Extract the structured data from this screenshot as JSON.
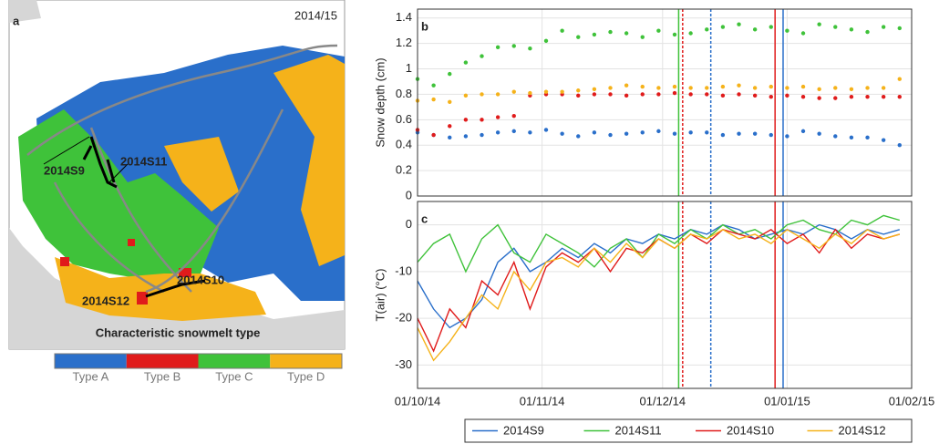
{
  "map": {
    "panel": "a",
    "season": "2014/15",
    "title": "Characteristic snowmelt type",
    "stations": [
      "2014S9",
      "2014S11",
      "2014S10",
      "2014S12"
    ],
    "legend": [
      {
        "label": "Type A",
        "color": "#2a6fca"
      },
      {
        "label": "Type B",
        "color": "#e01b1b"
      },
      {
        "label": "Type C",
        "color": "#3fc23a"
      },
      {
        "label": "Type D",
        "color": "#f5b21a"
      }
    ]
  },
  "chart_data": [
    {
      "type": "scatter",
      "panel": "b",
      "ylabel": "Snow depth (cm)",
      "xlim": [
        "01/10/14",
        "01/02/15"
      ],
      "ylim": [
        0,
        1.47
      ],
      "yticks": [
        0,
        0.2,
        0.4,
        0.6,
        0.8,
        1,
        1.2,
        1.4
      ],
      "grid": true,
      "x": [
        "01/10/14",
        "05/10/14",
        "09/10/14",
        "13/10/14",
        "17/10/14",
        "21/10/14",
        "25/10/14",
        "29/10/14",
        "02/11/14",
        "06/11/14",
        "10/11/14",
        "14/11/14",
        "18/11/14",
        "22/11/14",
        "26/11/14",
        "30/11/14",
        "04/12/14",
        "08/12/14",
        "12/12/14",
        "16/12/14",
        "20/12/14",
        "24/12/14",
        "28/12/14",
        "01/01/15",
        "05/01/15",
        "09/01/15",
        "13/01/15",
        "17/01/15",
        "21/01/15",
        "25/01/15",
        "29/01/15"
      ],
      "series": [
        {
          "color": "#2a6fca",
          "values": [
            0.5,
            0.48,
            0.46,
            0.47,
            0.48,
            0.5,
            0.51,
            0.5,
            0.52,
            0.49,
            0.47,
            0.5,
            0.48,
            0.49,
            0.5,
            0.51,
            0.49,
            0.5,
            0.5,
            0.48,
            0.49,
            0.49,
            0.48,
            0.47,
            0.51,
            0.49,
            0.47,
            0.46,
            0.46,
            0.44,
            0.4
          ]
        },
        {
          "color": "#3fc23a",
          "values": [
            0.92,
            0.87,
            0.96,
            1.05,
            1.1,
            1.17,
            1.18,
            1.16,
            1.22,
            1.3,
            1.25,
            1.27,
            1.29,
            1.28,
            1.25,
            1.3,
            1.27,
            1.28,
            1.31,
            1.33,
            1.35,
            1.31,
            1.33,
            1.3,
            1.28,
            1.35,
            1.33,
            1.31,
            1.29,
            1.33,
            1.32
          ]
        },
        {
          "color": "#e01b1b",
          "values": [
            0.52,
            0.48,
            0.55,
            0.6,
            0.6,
            0.62,
            0.63,
            0.79,
            0.8,
            0.8,
            0.79,
            0.8,
            0.8,
            0.79,
            0.8,
            0.8,
            0.81,
            0.8,
            0.8,
            0.79,
            0.8,
            0.79,
            0.78,
            0.79,
            0.78,
            0.77,
            0.77,
            0.78,
            0.78,
            0.78,
            0.78
          ]
        },
        {
          "color": "#f5b21a",
          "values": [
            0.75,
            0.76,
            0.74,
            0.79,
            0.8,
            0.8,
            0.82,
            0.81,
            0.82,
            0.82,
            0.83,
            0.84,
            0.85,
            0.87,
            0.86,
            0.85,
            0.86,
            0.85,
            0.85,
            0.86,
            0.87,
            0.85,
            0.86,
            0.85,
            0.86,
            0.84,
            0.85,
            0.84,
            0.85,
            0.85,
            0.92
          ]
        }
      ],
      "vlines": [
        {
          "x": "05/12/14",
          "color": "#3fc23a",
          "dash": false
        },
        {
          "x": "06/12/14",
          "color": "#e01b1b",
          "dash": true
        },
        {
          "x": "13/12/14",
          "color": "#2a6fca",
          "dash": true
        },
        {
          "x": "29/12/14",
          "color": "#e01b1b",
          "dash": false
        },
        {
          "x": "31/12/14",
          "color": "#2a6fca",
          "dash": false
        }
      ]
    },
    {
      "type": "line",
      "panel": "c",
      "ylabel": "T(air) (°C)",
      "xlim": [
        "01/10/14",
        "01/02/15"
      ],
      "xticks": [
        "01/10/14",
        "01/11/14",
        "01/12/14",
        "01/01/15",
        "01/02/15"
      ],
      "ylim": [
        -35,
        5
      ],
      "yticks": [
        -30,
        -20,
        -10,
        0
      ],
      "grid": true,
      "x": [
        "01/10/14",
        "05/10/14",
        "09/10/14",
        "13/10/14",
        "17/10/14",
        "21/10/14",
        "25/10/14",
        "29/10/14",
        "02/11/14",
        "06/11/14",
        "10/11/14",
        "14/11/14",
        "18/11/14",
        "22/11/14",
        "26/11/14",
        "30/11/14",
        "04/12/14",
        "08/12/14",
        "12/12/14",
        "16/12/14",
        "20/12/14",
        "24/12/14",
        "28/12/14",
        "01/01/15",
        "05/01/15",
        "09/01/15",
        "13/01/15",
        "17/01/15",
        "21/01/15",
        "25/01/15",
        "29/01/15"
      ],
      "series": [
        {
          "name": "2014S9",
          "color": "#2a6fca",
          "values": [
            -12,
            -18,
            -22,
            -20,
            -16,
            -8,
            -5,
            -10,
            -8,
            -5,
            -7,
            -4,
            -6,
            -3,
            -4,
            -2,
            -3,
            -1,
            -2,
            0,
            -1,
            -3,
            -2,
            -1,
            -2,
            0,
            -1,
            -3,
            -1,
            -2,
            -1
          ]
        },
        {
          "name": "2014S11",
          "color": "#3fc23a",
          "values": [
            -8,
            -4,
            -2,
            -10,
            -3,
            0,
            -6,
            -8,
            -2,
            -4,
            -6,
            -9,
            -5,
            -3,
            -7,
            -2,
            -4,
            -1,
            -3,
            0,
            -2,
            -1,
            -3,
            0,
            1,
            -1,
            -2,
            1,
            0,
            2,
            1
          ]
        },
        {
          "name": "2014S10",
          "color": "#e01b1b",
          "values": [
            -20,
            -27,
            -18,
            -22,
            -12,
            -15,
            -8,
            -18,
            -9,
            -6,
            -8,
            -5,
            -10,
            -5,
            -6,
            -3,
            -5,
            -2,
            -4,
            -1,
            -2,
            -3,
            -1,
            -4,
            -2,
            -6,
            -1,
            -5,
            -2,
            -3,
            -2
          ]
        },
        {
          "name": "2014S12",
          "color": "#f5b21a",
          "values": [
            -22,
            -29,
            -25,
            -20,
            -15,
            -18,
            -10,
            -14,
            -8,
            -7,
            -9,
            -5,
            -8,
            -4,
            -7,
            -3,
            -5,
            -2,
            -3,
            -1,
            -3,
            -2,
            -4,
            -1,
            -3,
            -5,
            -2,
            -4,
            -1,
            -3,
            -2
          ]
        }
      ]
    }
  ]
}
